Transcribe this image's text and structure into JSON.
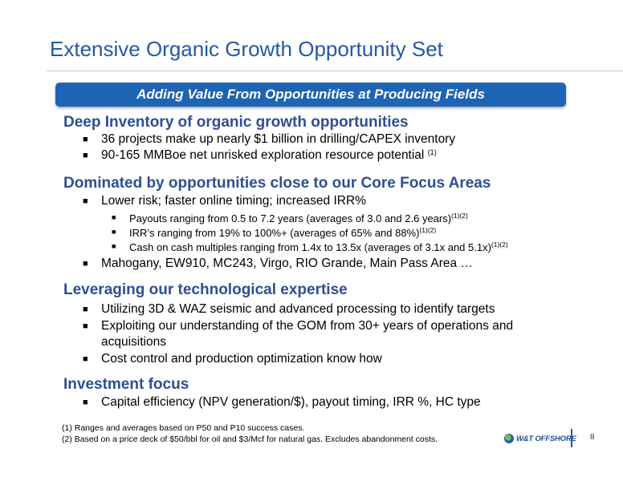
{
  "title": "Extensive Organic Growth Opportunity Set",
  "banner": "Adding Value From Opportunities at Producing Fields",
  "bullet_glyph_main": "■",
  "bullet_glyph_sub": "■",
  "sections": {
    "s1": {
      "heading": "Deep Inventory of organic growth opportunities",
      "b1": "36 projects make up nearly $1 billion in drilling/CAPEX inventory",
      "b2": "90-165 MMBoe net unrisked exploration resource potential",
      "b2_sup": "(1)"
    },
    "s2": {
      "heading": "Dominated by opportunities close to our Core Focus Areas",
      "b1": "Lower risk;  faster online timing;  increased IRR%",
      "sub1": "Payouts ranging from 0.5 to 7.2 years (averages of 3.0 and 2.6 years)",
      "sub1_sup": "(1)(2)",
      "sub2": "IRR’s ranging from 19% to 100%+ (averages of 65% and 88%)",
      "sub2_sup": "(1)(2)",
      "sub3": "Cash on cash multiples ranging from 1.4x to 13.5x (averages of 3.1x and 5.1x)",
      "sub3_sup": "(1)(2)",
      "b2": "Mahogany, EW910, MC243, Virgo, RIO Grande, Main Pass Area …"
    },
    "s3": {
      "heading": "Leveraging our technological expertise",
      "b1": "Utilizing 3D & WAZ seismic and advanced processing to identify targets",
      "b2_line1": "Exploiting our understanding of the GOM from 30+ years of operations and",
      "b2_line2": "acquisitions",
      "b3": "Cost control and production optimization know how"
    },
    "s4": {
      "heading": "Investment focus",
      "b1": "Capital efficiency (NPV generation/$), payout timing, IRR %, HC type"
    }
  },
  "footnotes": {
    "f1": "(1) Ranges and averages based on P50 and P10 success cases.",
    "f2": "(2) Based on a price deck of $50/bbl for oil and $3/Mcf for natural gas.  Excludes abandonment costs."
  },
  "logo": {
    "text": "W&T OFFSHORE",
    "icon": "wt-offshore-logo-icon"
  },
  "page_number": "8",
  "colors": {
    "title": "#2458a8",
    "heading": "#2d4f93",
    "banner_bg": "#1e64b4",
    "banner_text": "#ffffff"
  }
}
